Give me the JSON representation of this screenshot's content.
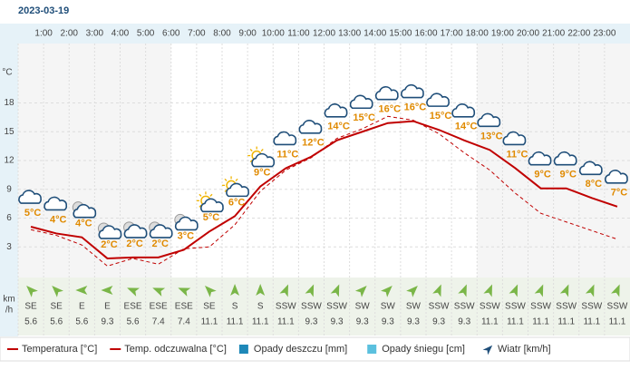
{
  "chart_data": {
    "type": "line",
    "title": "2023-03-19",
    "categories": [
      null,
      "1:00",
      "2:00",
      "3:00",
      "4:00",
      "5:00",
      "6:00",
      "7:00",
      "8:00",
      "9:00",
      "10:00",
      "11:00",
      "12:00",
      "13:00",
      "14:00",
      "15:00",
      "16:00",
      "17:00",
      "18:00",
      "19:00",
      "20:00",
      "21:00",
      "22:00",
      "23:00"
    ],
    "ylabel": "°C",
    "ylim": [
      0,
      24
    ],
    "yticks": [
      3,
      6,
      9,
      12,
      15,
      18
    ],
    "grid": true,
    "series": [
      {
        "name": "Temperatura [°C]",
        "color": "#c00000",
        "style": "solid",
        "values": [
          5.1,
          4.4,
          4.0,
          1.8,
          1.9,
          1.9,
          2.7,
          4.6,
          6.2,
          9.3,
          11.2,
          12.4,
          14.1,
          15.0,
          15.9,
          16.1,
          15.2,
          14.1,
          13.1,
          11.2,
          9.1,
          9.1,
          8.1,
          7.2
        ],
        "value_labels": [
          "5°C",
          "4°C",
          "4°C",
          "2°C",
          "2°C",
          "2°C",
          "3°C",
          "5°C",
          "6°C",
          "9°C",
          "11°C",
          "12°C",
          "14°C",
          "15°C",
          "16°C",
          "16°C",
          "15°C",
          "14°C",
          "13°C",
          "11°C",
          "9°C",
          "9°C",
          "8°C",
          "7°C"
        ]
      },
      {
        "name": "Temp. odczuwalna [°C]",
        "color": "#c00000",
        "style": "dashed",
        "values": [
          4.8,
          4.2,
          3.2,
          1.0,
          1.8,
          1.2,
          2.8,
          3.0,
          5.3,
          8.8,
          11.0,
          12.3,
          14.3,
          15.3,
          16.6,
          16.2,
          14.8,
          12.8,
          11.0,
          8.6,
          6.5,
          5.6,
          4.7,
          3.8
        ]
      }
    ],
    "wind": {
      "name": "Wiatr [km/h]",
      "color": "#7ab648",
      "legend_color": "#1f4e79",
      "unit_lines": [
        "km",
        "/h"
      ],
      "directions": [
        "SE",
        "SE",
        "E",
        "E",
        "ESE",
        "ESE",
        "ESE",
        "SE",
        "S",
        "S",
        "SSW",
        "SSW",
        "SSW",
        "SW",
        "SW",
        "SW",
        "SSW",
        "SSW",
        "SSW",
        "SSW",
        "SSW",
        "SSW",
        "SSW",
        "SSW"
      ],
      "speeds": [
        5.6,
        5.6,
        5.6,
        9.3,
        5.6,
        7.4,
        7.4,
        11.1,
        11.1,
        11.1,
        11.1,
        9.3,
        9.3,
        9.3,
        9.3,
        9.3,
        9.3,
        9.3,
        11.1,
        11.1,
        11.1,
        11.1,
        11.1,
        11.1
      ]
    },
    "legend_extra": [
      {
        "name": "Opady deszczu [mm]",
        "color": "#1e88b8"
      },
      {
        "name": "Opady śniegu [cm]",
        "color": "#5bc0de"
      }
    ]
  }
}
